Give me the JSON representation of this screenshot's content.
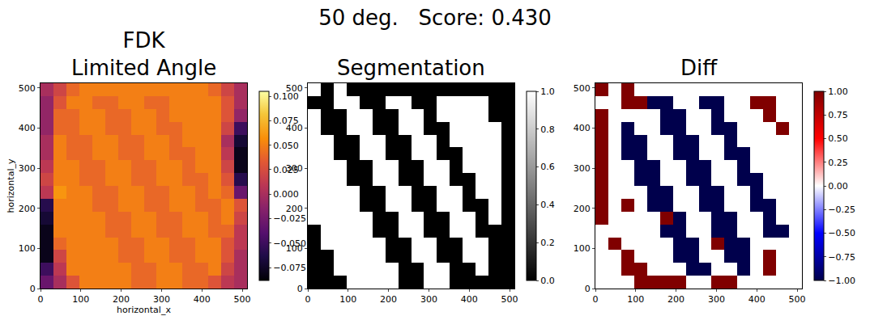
{
  "title": "50 deg.   Score: 0.430",
  "chart_data": [
    {
      "type": "heatmap",
      "title": "FDK\nLimited Angle",
      "x_label": "horizontal_x",
      "y_label": "horizontal_y",
      "color": "inferno",
      "x": [
        16,
        48,
        80,
        112,
        144,
        176,
        208,
        240,
        272,
        304,
        336,
        368,
        400,
        432,
        464,
        496
      ],
      "y": [
        16,
        48,
        80,
        112,
        144,
        176,
        208,
        240,
        272,
        304,
        336,
        368,
        400,
        432,
        464,
        496
      ],
      "xlim": [
        0,
        512
      ],
      "ylim": [
        0,
        512
      ],
      "xticks": [
        0,
        100,
        200,
        300,
        400,
        500
      ],
      "yticks": [
        0,
        100,
        200,
        300,
        400,
        500
      ],
      "zlim": [
        -0.088,
        0.105
      ],
      "zticks": [
        {
          "value": -0.075,
          "label": "−0.075"
        },
        {
          "value": -0.05,
          "label": "−0.050"
        },
        {
          "value": -0.025,
          "label": "−0.025"
        },
        {
          "value": 0,
          "label": "0.000"
        },
        {
          "value": 0.025,
          "label": "0.025"
        },
        {
          "value": 0.05,
          "label": "0.050"
        },
        {
          "value": 0.075,
          "label": "0.075"
        },
        {
          "value": 0.1,
          "label": "0.100"
        }
      ],
      "z": [
        [
          -0.03,
          0.0,
          0.03,
          0.05,
          0.05,
          0.05,
          0.05,
          0.04,
          0.04,
          0.05,
          0.05,
          0.04,
          0.04,
          0.03,
          0.01,
          0.0
        ],
        [
          -0.05,
          0.01,
          0.05,
          0.05,
          0.05,
          0.05,
          0.05,
          0.04,
          0.04,
          0.05,
          0.05,
          0.04,
          0.04,
          0.05,
          0.02,
          0.0
        ],
        [
          -0.08,
          0.02,
          0.05,
          0.05,
          0.05,
          0.05,
          0.04,
          0.04,
          0.05,
          0.05,
          0.04,
          0.04,
          0.05,
          0.05,
          0.03,
          0.0
        ],
        [
          -0.08,
          0.04,
          0.05,
          0.05,
          0.05,
          0.05,
          0.04,
          0.04,
          0.05,
          0.05,
          0.04,
          0.04,
          0.05,
          0.05,
          0.03,
          0.01
        ],
        [
          -0.08,
          0.05,
          0.05,
          0.05,
          0.05,
          0.04,
          0.04,
          0.05,
          0.05,
          0.04,
          0.04,
          0.05,
          0.05,
          0.04,
          0.04,
          0.01
        ],
        [
          -0.07,
          0.05,
          0.05,
          0.05,
          0.05,
          0.04,
          0.04,
          0.05,
          0.05,
          0.04,
          0.04,
          0.05,
          0.05,
          0.04,
          0.05,
          0.02
        ],
        [
          -0.06,
          0.05,
          0.05,
          0.05,
          0.04,
          0.04,
          0.05,
          0.05,
          0.04,
          0.04,
          0.05,
          0.05,
          0.04,
          0.04,
          0.05,
          0.03
        ],
        [
          0.01,
          0.06,
          0.05,
          0.05,
          0.04,
          0.04,
          0.05,
          0.05,
          0.04,
          0.04,
          0.05,
          0.05,
          0.04,
          0.05,
          0.04,
          -0.03
        ],
        [
          0.02,
          0.05,
          0.05,
          0.04,
          0.04,
          0.05,
          0.05,
          0.04,
          0.04,
          0.05,
          0.05,
          0.04,
          0.04,
          0.05,
          0.03,
          -0.06
        ],
        [
          0.01,
          0.05,
          0.05,
          0.04,
          0.04,
          0.05,
          0.05,
          0.04,
          0.04,
          0.05,
          0.05,
          0.04,
          0.05,
          0.05,
          0.02,
          -0.08
        ],
        [
          0.0,
          0.05,
          0.04,
          0.04,
          0.05,
          0.05,
          0.04,
          0.04,
          0.05,
          0.05,
          0.04,
          0.04,
          0.05,
          0.05,
          0.01,
          -0.08
        ],
        [
          0.0,
          0.05,
          0.04,
          0.04,
          0.05,
          0.05,
          0.04,
          0.04,
          0.05,
          0.05,
          0.04,
          0.05,
          0.05,
          0.05,
          0.0,
          -0.07
        ],
        [
          -0.01,
          0.04,
          0.04,
          0.05,
          0.05,
          0.04,
          0.04,
          0.05,
          0.05,
          0.04,
          0.04,
          0.05,
          0.05,
          0.05,
          0.02,
          -0.05
        ],
        [
          -0.01,
          0.04,
          0.04,
          0.05,
          0.05,
          0.04,
          0.04,
          0.05,
          0.05,
          0.04,
          0.05,
          0.05,
          0.05,
          0.05,
          0.03,
          -0.01
        ],
        [
          -0.01,
          0.03,
          0.05,
          0.05,
          0.04,
          0.04,
          0.05,
          0.05,
          0.04,
          0.04,
          0.05,
          0.05,
          0.05,
          0.05,
          0.03,
          0.0
        ],
        [
          0.0,
          0.02,
          0.04,
          0.05,
          0.05,
          0.05,
          0.05,
          0.05,
          0.05,
          0.05,
          0.05,
          0.05,
          0.05,
          0.04,
          0.02,
          0.0
        ]
      ]
    },
    {
      "type": "heatmap",
      "title": "Segmentation",
      "color": "gray",
      "x": [
        16,
        48,
        80,
        112,
        144,
        176,
        208,
        240,
        272,
        304,
        336,
        368,
        400,
        432,
        464,
        496
      ],
      "y": [
        16,
        48,
        80,
        112,
        144,
        176,
        208,
        240,
        272,
        304,
        336,
        368,
        400,
        432,
        464,
        496
      ],
      "xlim": [
        0,
        512
      ],
      "ylim": [
        0,
        512
      ],
      "xticks": [
        0,
        100,
        200,
        300,
        400,
        500
      ],
      "yticks": [
        0,
        100,
        200,
        300,
        400,
        500
      ],
      "zlim": [
        0,
        1
      ],
      "zticks": [
        {
          "value": 0,
          "label": "0.0"
        },
        0.2,
        0.4,
        0.6,
        0.8,
        {
          "value": 1,
          "label": "1.0"
        }
      ],
      "z": [
        [
          0,
          0,
          0,
          1,
          1,
          1,
          1,
          0,
          0,
          1,
          1,
          0,
          0,
          0,
          0,
          0
        ],
        [
          0,
          0,
          1,
          1,
          1,
          1,
          1,
          0,
          0,
          1,
          1,
          0,
          0,
          1,
          0,
          0
        ],
        [
          0,
          0,
          1,
          1,
          1,
          1,
          0,
          0,
          1,
          1,
          0,
          0,
          1,
          1,
          0,
          0
        ],
        [
          0,
          1,
          1,
          1,
          1,
          1,
          0,
          0,
          1,
          1,
          0,
          0,
          1,
          1,
          0,
          0
        ],
        [
          0,
          1,
          1,
          1,
          1,
          0,
          0,
          1,
          1,
          0,
          0,
          1,
          1,
          0,
          0,
          0
        ],
        [
          1,
          1,
          1,
          1,
          1,
          0,
          0,
          1,
          1,
          0,
          0,
          1,
          1,
          0,
          1,
          0
        ],
        [
          1,
          1,
          1,
          1,
          0,
          0,
          1,
          1,
          0,
          0,
          1,
          1,
          0,
          0,
          1,
          0
        ],
        [
          1,
          1,
          1,
          1,
          0,
          0,
          1,
          1,
          0,
          0,
          1,
          1,
          0,
          1,
          1,
          0
        ],
        [
          1,
          1,
          1,
          0,
          0,
          1,
          1,
          0,
          0,
          1,
          1,
          0,
          0,
          1,
          1,
          0
        ],
        [
          1,
          1,
          1,
          0,
          0,
          1,
          1,
          0,
          0,
          1,
          1,
          0,
          1,
          1,
          1,
          0
        ],
        [
          1,
          1,
          0,
          0,
          1,
          1,
          0,
          0,
          1,
          1,
          0,
          0,
          1,
          1,
          1,
          0
        ],
        [
          1,
          1,
          0,
          0,
          1,
          1,
          0,
          0,
          1,
          1,
          0,
          1,
          1,
          1,
          1,
          0
        ],
        [
          1,
          0,
          0,
          1,
          1,
          0,
          0,
          1,
          1,
          0,
          0,
          1,
          1,
          1,
          1,
          0
        ],
        [
          1,
          0,
          0,
          1,
          1,
          0,
          0,
          1,
          1,
          0,
          1,
          1,
          1,
          1,
          0,
          0
        ],
        [
          0,
          0,
          1,
          1,
          0,
          0,
          1,
          1,
          0,
          0,
          1,
          1,
          1,
          1,
          0,
          0
        ],
        [
          1,
          0,
          1,
          0,
          0,
          0,
          0,
          0,
          0,
          0,
          0,
          0,
          0,
          0,
          0,
          0
        ]
      ]
    },
    {
      "type": "heatmap",
      "title": "Diff",
      "color": "seismic",
      "x": [
        16,
        48,
        80,
        112,
        144,
        176,
        208,
        240,
        272,
        304,
        336,
        368,
        400,
        432,
        464,
        496
      ],
      "y": [
        16,
        48,
        80,
        112,
        144,
        176,
        208,
        240,
        272,
        304,
        336,
        368,
        400,
        432,
        464,
        496
      ],
      "xlim": [
        0,
        512
      ],
      "ylim": [
        0,
        512
      ],
      "xticks": [
        0,
        100,
        200,
        300,
        400,
        500
      ],
      "yticks": [
        0,
        100,
        200,
        300,
        400,
        500
      ],
      "zlim": [
        -1,
        1
      ],
      "zticks": [
        {
          "value": -1,
          "label": "−1.00"
        },
        {
          "value": -0.75,
          "label": "−0.75"
        },
        {
          "value": -0.5,
          "label": "−0.50"
        },
        {
          "value": -0.25,
          "label": "−0.25"
        },
        {
          "value": 0,
          "label": "0.00"
        },
        0.25,
        {
          "value": 0.5,
          "label": "0.50"
        },
        0.75,
        {
          "value": 1,
          "label": "1.00"
        }
      ],
      "z": [
        [
          0,
          0,
          0,
          1,
          1,
          1,
          1,
          0,
          0,
          1,
          1,
          0,
          0,
          0,
          0,
          0
        ],
        [
          0,
          0,
          1,
          1,
          0,
          0,
          0,
          -1,
          -1,
          0,
          0,
          -1,
          0,
          1,
          0,
          0
        ],
        [
          0,
          0,
          1,
          0,
          0,
          0,
          -1,
          -1,
          0,
          0,
          -1,
          -1,
          0,
          1,
          0,
          0
        ],
        [
          0,
          1,
          0,
          0,
          0,
          0,
          -1,
          -1,
          0,
          1,
          -1,
          -1,
          0,
          0,
          0,
          0
        ],
        [
          0,
          0,
          0,
          0,
          0,
          -1,
          -1,
          0,
          0,
          -1,
          -1,
          0,
          0,
          -1,
          -1,
          0
        ],
        [
          1,
          0,
          0,
          0,
          0,
          1,
          -1,
          0,
          0,
          -1,
          -1,
          0,
          0,
          -1,
          0,
          0
        ],
        [
          1,
          0,
          1,
          0,
          -1,
          -1,
          0,
          0,
          -1,
          -1,
          0,
          0,
          -1,
          -1,
          0,
          0
        ],
        [
          1,
          0,
          0,
          0,
          -1,
          -1,
          0,
          0,
          -1,
          -1,
          0,
          0,
          -1,
          0,
          0,
          0
        ],
        [
          1,
          0,
          0,
          -1,
          -1,
          0,
          0,
          -1,
          -1,
          0,
          0,
          -1,
          -1,
          0,
          0,
          0
        ],
        [
          1,
          0,
          0,
          -1,
          -1,
          0,
          0,
          -1,
          -1,
          0,
          0,
          -1,
          0,
          0,
          0,
          0
        ],
        [
          1,
          0,
          -1,
          -1,
          0,
          0,
          -1,
          -1,
          0,
          0,
          -1,
          -1,
          0,
          0,
          0,
          0
        ],
        [
          1,
          0,
          -1,
          -1,
          0,
          0,
          -1,
          -1,
          0,
          0,
          -1,
          0,
          0,
          0,
          0,
          0
        ],
        [
          1,
          0,
          -1,
          0,
          0,
          -1,
          -1,
          0,
          0,
          -1,
          -1,
          0,
          0,
          0,
          1,
          0
        ],
        [
          1,
          0,
          0,
          0,
          0,
          -1,
          -1,
          0,
          0,
          -1,
          0,
          0,
          0,
          1,
          0,
          0
        ],
        [
          0,
          0,
          1,
          1,
          -1,
          -1,
          0,
          0,
          -1,
          -1,
          0,
          0,
          1,
          1,
          0,
          0
        ],
        [
          1,
          0,
          1,
          0,
          0,
          0,
          0,
          0,
          0,
          0,
          0,
          0,
          0,
          0,
          0,
          0
        ]
      ]
    }
  ]
}
